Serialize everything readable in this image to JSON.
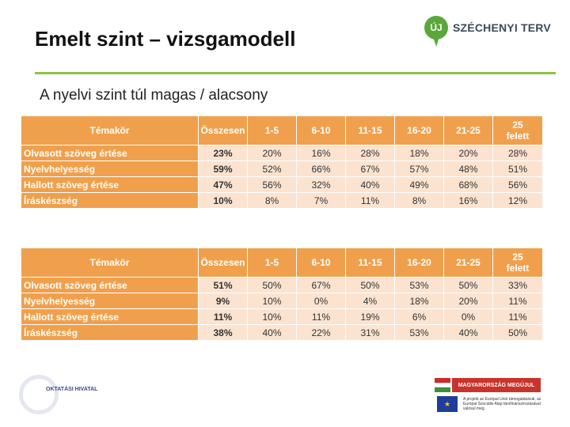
{
  "header": {
    "title": "Emelt szint – vizsgamodell",
    "subtitle": "A nyelvi szint túl magas / alacsony",
    "logo_badge": "ÚJ",
    "logo_text": "SZÉCHENYI TERV",
    "accent_color": "#8fc04a"
  },
  "table_columns": [
    "Témakör",
    "Összesen",
    "1-5",
    "6-10",
    "11-15",
    "16-20",
    "21-25",
    "25 felett"
  ],
  "table1": {
    "rows": [
      {
        "topic": "Olvasott szöveg értése",
        "values": [
          "23%",
          "20%",
          "16%",
          "28%",
          "18%",
          "20%",
          "28%"
        ]
      },
      {
        "topic": "Nyelvhelyesség",
        "values": [
          "59%",
          "52%",
          "66%",
          "67%",
          "57%",
          "48%",
          "51%"
        ]
      },
      {
        "topic": "Hallott szöveg értése",
        "values": [
          "47%",
          "56%",
          "32%",
          "40%",
          "49%",
          "68%",
          "56%"
        ]
      },
      {
        "topic": "Íráskészség",
        "values": [
          "10%",
          "8%",
          "7%",
          "11%",
          "8%",
          "16%",
          "12%"
        ]
      }
    ]
  },
  "table2": {
    "rows": [
      {
        "topic": "Olvasott szöveg értése",
        "values": [
          "51%",
          "50%",
          "67%",
          "50%",
          "53%",
          "50%",
          "33%"
        ]
      },
      {
        "topic": "Nyelvhelyesség",
        "values": [
          "9%",
          "10%",
          "0%",
          "4%",
          "18%",
          "20%",
          "11%"
        ]
      },
      {
        "topic": "Hallott szöveg értése",
        "values": [
          "11%",
          "10%",
          "11%",
          "19%",
          "6%",
          "0%",
          "11%"
        ]
      },
      {
        "topic": "Íráskészség",
        "values": [
          "38%",
          "40%",
          "22%",
          "31%",
          "53%",
          "40%",
          "50%"
        ]
      }
    ]
  },
  "footer": {
    "left_logo_text": "OKTATÁSI HIVATAL",
    "banner_text": "MAGYARORSZÁG MEGÚJUL",
    "eu_text": "A projekt az Európai Unió támogatásával, az Európai Szociális Alap társfinanszírozásával valósul meg."
  },
  "colors": {
    "header_orange": "#f0a04c",
    "cell_peach": "#fbe3d0"
  }
}
